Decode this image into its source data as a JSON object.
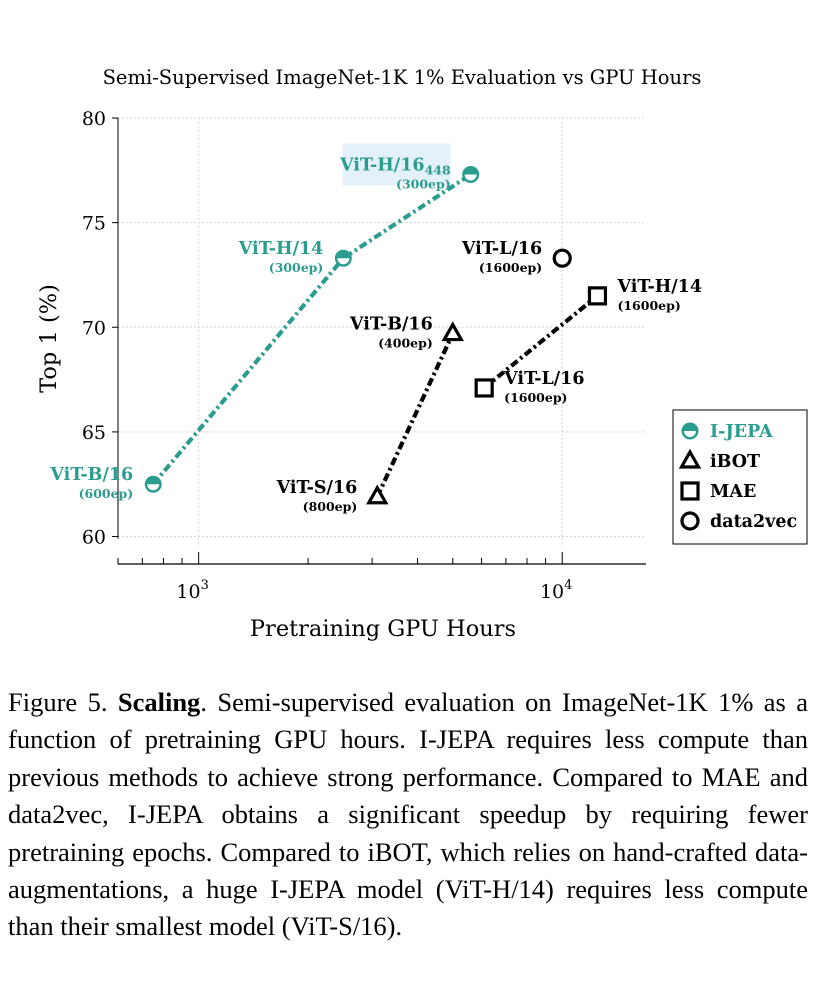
{
  "chart_data": {
    "type": "scatter",
    "title": "Semi-Supervised ImageNet-1K 1% Evaluation vs GPU Hours",
    "xlabel": "Pretraining GPU Hours",
    "ylabel": "Top 1 (%)",
    "xscale": "log",
    "xlim": [
      600,
      17000
    ],
    "ylim": [
      59.5,
      80
    ],
    "yticks": [
      60,
      65,
      70,
      75,
      80
    ],
    "xticks": [
      {
        "value": 1000,
        "base": "10",
        "exp": "3"
      },
      {
        "value": 10000,
        "base": "10",
        "exp": "4"
      }
    ],
    "grid": true,
    "legend": "right",
    "series": [
      {
        "name": "I-JEPA",
        "marker": "half-circle",
        "color": "#2a9d8f",
        "connected": true,
        "points": [
          {
            "x": 750,
            "y": 62.5,
            "label": "ViT-B/16",
            "sub": "",
            "note": "(600ep)",
            "label_side": "left"
          },
          {
            "x": 2500,
            "y": 73.3,
            "label": "ViT-H/14",
            "sub": "",
            "note": "(300ep)",
            "label_side": "left"
          },
          {
            "x": 5600,
            "y": 77.3,
            "label": "ViT-H/16",
            "sub": "448",
            "note": "(300ep)",
            "label_side": "left"
          }
        ]
      },
      {
        "name": "iBOT",
        "marker": "triangle",
        "color": "#000000",
        "connected": true,
        "points": [
          {
            "x": 3100,
            "y": 61.9,
            "label": "ViT-S/16",
            "sub": "",
            "note": "(800ep)",
            "label_side": "left"
          },
          {
            "x": 5000,
            "y": 69.7,
            "label": "ViT-B/16",
            "sub": "",
            "note": "(400ep)",
            "label_side": "left"
          }
        ]
      },
      {
        "name": "MAE",
        "marker": "square",
        "color": "#000000",
        "connected": true,
        "points": [
          {
            "x": 6100,
            "y": 67.1,
            "label": "ViT-L/16",
            "sub": "",
            "note": "(1600ep)",
            "label_side": "right"
          },
          {
            "x": 12500,
            "y": 71.5,
            "label": "ViT-H/14",
            "sub": "",
            "note": "(1600ep)",
            "label_side": "right"
          }
        ]
      },
      {
        "name": "data2vec",
        "marker": "circle",
        "color": "#000000",
        "connected": false,
        "points": [
          {
            "x": 10000,
            "y": 73.3,
            "label": "ViT-L/16",
            "sub": "",
            "note": "(1600ep)",
            "label_side": "left"
          }
        ]
      }
    ]
  },
  "caption": {
    "figure_label": "Figure 5.",
    "title": "Scaling",
    "text": ". Semi-supervised evaluation on ImageNet-1K 1% as a function of pretraining GPU hours. I-JEPA requires less compute than previous methods to achieve strong performance. Compared to MAE and data2vec, I-JEPA obtains a significant speedup by requiring fewer pretraining epochs.  Compared to iBOT, which relies on hand-crafted data-augmentations, a huge I-JEPA model (ViT-H/14) requires less compute than their smallest model (ViT-S/16)."
  }
}
